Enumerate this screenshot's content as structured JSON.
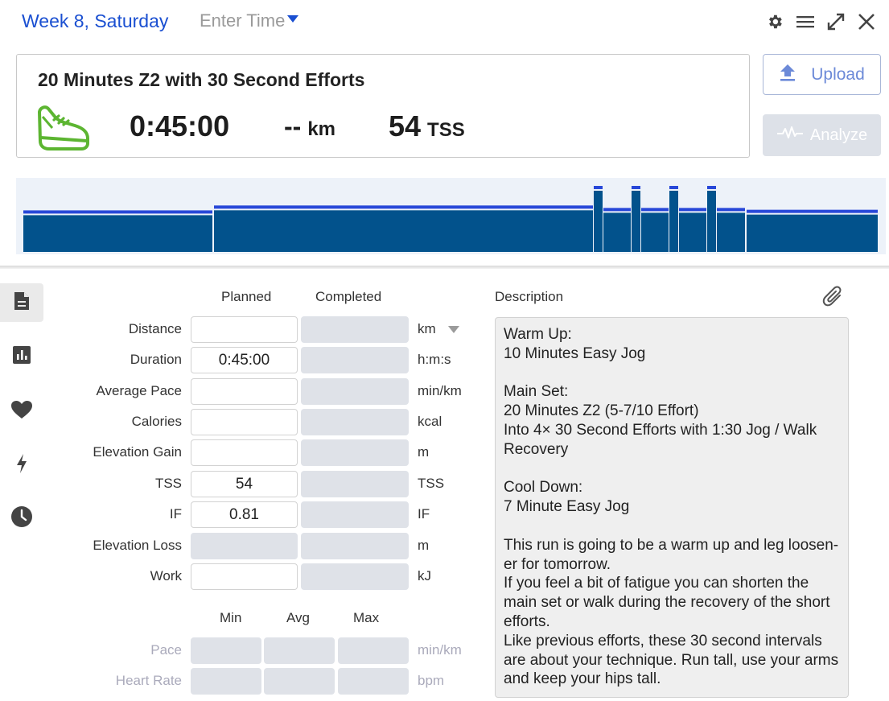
{
  "header": {
    "date_label": "Week 8, Saturday",
    "time_placeholder": "Enter Time"
  },
  "summary": {
    "title": "20 Minutes Z2 with 30 Second Efforts",
    "duration": "0:45:00",
    "distance_value": "--",
    "distance_unit": "km",
    "tss_value": "54",
    "tss_unit": "TSS",
    "sport_icon": "running-shoe-icon",
    "sport_color": "#5cb531"
  },
  "actions": {
    "upload_label": "Upload",
    "analyze_label": "Analyze"
  },
  "workout_graph": {
    "fill_color": "#02528c",
    "line_color": "#2747d8",
    "background": "#edf2f9",
    "segments": [
      {
        "name": "warm-up",
        "intensity": 0.6
      },
      {
        "name": "main-z2",
        "intensity": 0.68
      },
      {
        "name": "effort-1",
        "intensity": 1.0
      },
      {
        "name": "recovery-1",
        "intensity": 0.64
      },
      {
        "name": "effort-2",
        "intensity": 1.0
      },
      {
        "name": "recovery-2",
        "intensity": 0.64
      },
      {
        "name": "effort-3",
        "intensity": 1.0
      },
      {
        "name": "recovery-3",
        "intensity": 0.64
      },
      {
        "name": "effort-4",
        "intensity": 1.0
      },
      {
        "name": "recovery-4",
        "intensity": 0.64
      },
      {
        "name": "cool-down",
        "intensity": 0.61
      }
    ]
  },
  "rail": [
    "document-icon",
    "chart-icon",
    "heart-icon",
    "lightning-icon",
    "clock-icon"
  ],
  "form": {
    "col_planned": "Planned",
    "col_completed": "Completed",
    "rows": [
      {
        "label": "Distance",
        "planned": "",
        "completed": "",
        "unit": "km"
      },
      {
        "label": "Duration",
        "planned": "0:45:00",
        "completed": "",
        "unit": "h:m:s"
      },
      {
        "label": "Average Pace",
        "planned": "",
        "completed": "",
        "unit": "min/km"
      },
      {
        "label": "Calories",
        "planned": "",
        "completed": "",
        "unit": "kcal"
      },
      {
        "label": "Elevation Gain",
        "planned": "",
        "completed": "",
        "unit": "m"
      },
      {
        "label": "TSS",
        "planned": "54",
        "completed": "",
        "unit": "TSS"
      },
      {
        "label": "IF",
        "planned": "0.81",
        "completed": "",
        "unit": "IF"
      },
      {
        "label": "Elevation Loss",
        "planned": "",
        "completed": "",
        "unit": "m"
      },
      {
        "label": "Work",
        "planned": "",
        "completed": "",
        "unit": "kJ"
      }
    ],
    "col_min": "Min",
    "col_avg": "Avg",
    "col_max": "Max",
    "range_rows": [
      {
        "label": "Pace",
        "unit": "min/km"
      },
      {
        "label": "Heart Rate",
        "unit": "bpm"
      }
    ]
  },
  "description": {
    "heading": "Description",
    "text": "Warm Up:\n10 Minutes Easy Jog\n\nMain Set:\n20 Minutes Z2 (5-7/10 Effort)\nInto 4× 30 Second Efforts with 1:30 Jog / Walk Recovery\n\nCool Down:\n7 Minute Easy Jog\n\nThis run is going to be a warm up and leg loosen-er for tomorrow.\nIf you feel a bit of fatigue you can shorten the main set or walk during the recovery of the short efforts.\nLike previous efforts, these 30 second intervals are about your technique. Run tall, use your arms and keep your hips tall."
  }
}
